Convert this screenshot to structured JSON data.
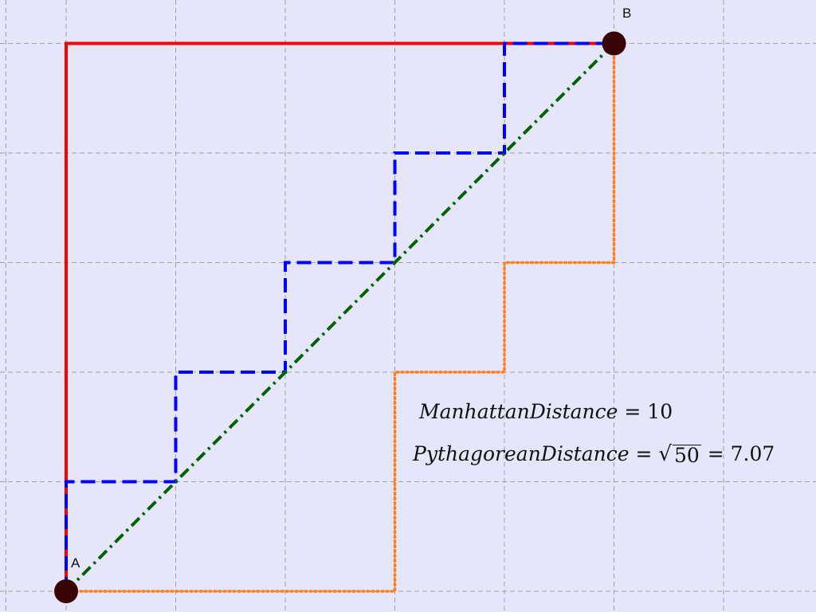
{
  "points": {
    "a": {
      "label": "A",
      "x": 0,
      "y": 0
    },
    "b": {
      "label": "B",
      "x": 5,
      "y": 5
    }
  },
  "formulas": {
    "manhattan_name": "ManhattanDistance",
    "manhattan_value": "10",
    "pythagorean_name": "PythagoreanDistance",
    "pythagorean_radicand": "50",
    "pythagorean_value": "7.07",
    "equals": "="
  },
  "paths": {
    "red_path": [
      [
        0,
        0
      ],
      [
        0,
        5
      ],
      [
        5,
        5
      ]
    ],
    "blue_staircase": [
      [
        0,
        0
      ],
      [
        0,
        1
      ],
      [
        1,
        1
      ],
      [
        1,
        2
      ],
      [
        2,
        2
      ],
      [
        2,
        3
      ],
      [
        3,
        3
      ],
      [
        3,
        4
      ],
      [
        4,
        4
      ],
      [
        4,
        5
      ],
      [
        5,
        5
      ]
    ],
    "orange_staircase": [
      [
        0,
        0
      ],
      [
        3,
        0
      ],
      [
        3,
        2
      ],
      [
        4,
        2
      ],
      [
        4,
        3
      ],
      [
        5,
        3
      ],
      [
        5,
        5
      ]
    ],
    "green_diagonal": [
      [
        0,
        0
      ],
      [
        5,
        5
      ]
    ]
  },
  "colors": {
    "background": "#e6e6fa",
    "grid": "#a0a0a0",
    "red_path": "#ff0000",
    "blue_staircase": "#0000ff",
    "orange_staircase": "#ff7f1e",
    "green_diagonal": "#006400",
    "points": "#3a0505"
  },
  "grid": {
    "show": true,
    "style": "dashed"
  }
}
